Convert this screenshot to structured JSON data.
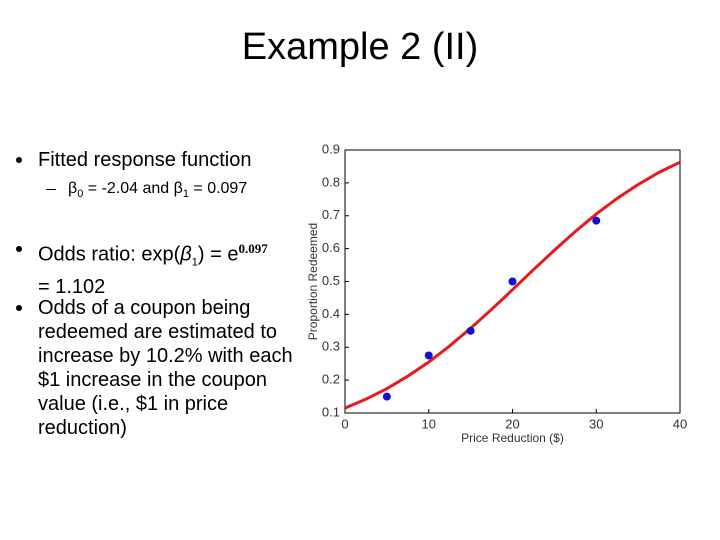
{
  "slide": {
    "title": "Example 2 (II)",
    "bullet1": "Fitted response function",
    "sub_bullet": [
      "β",
      "0",
      " = -2.04 and ",
      "β",
      "1",
      " = 0.097"
    ],
    "bullet2": [
      "Odds ratio: exp(",
      "β",
      "1",
      ") = e",
      "0.097",
      "= 1.102"
    ],
    "bullet3": "Odds of a coupon being redeemed are estimated to increase by 10.2% with each $1 increase in the coupon value (i.e., $1 in price reduction)"
  },
  "chart_data": {
    "type": "scatter",
    "x_label": "Price Reduction ($)",
    "y_label": "Proportion Redeemed",
    "xlim": [
      0,
      40
    ],
    "ylim": [
      0.1,
      0.9
    ],
    "xticks": [
      0,
      10,
      20,
      30,
      40
    ],
    "yticks": [
      0.1,
      0.2,
      0.3,
      0.4,
      0.5,
      0.6,
      0.7,
      0.8,
      0.9
    ],
    "series": [
      {
        "type": "line",
        "color": "#e41a1c",
        "x": [
          0,
          2.5,
          5,
          7.5,
          10,
          12.5,
          15,
          17.5,
          20,
          22.5,
          25,
          27.5,
          30,
          32.5,
          35,
          37.5,
          40
        ],
        "y": [
          0.115,
          0.142,
          0.174,
          0.212,
          0.255,
          0.304,
          0.358,
          0.415,
          0.475,
          0.536,
          0.595,
          0.652,
          0.705,
          0.753,
          0.795,
          0.832,
          0.863
        ]
      },
      {
        "type": "scatter",
        "color": "#1010d0",
        "x": [
          5,
          10,
          15,
          20,
          30
        ],
        "y": [
          0.15,
          0.275,
          0.35,
          0.5,
          0.685
        ]
      }
    ]
  }
}
